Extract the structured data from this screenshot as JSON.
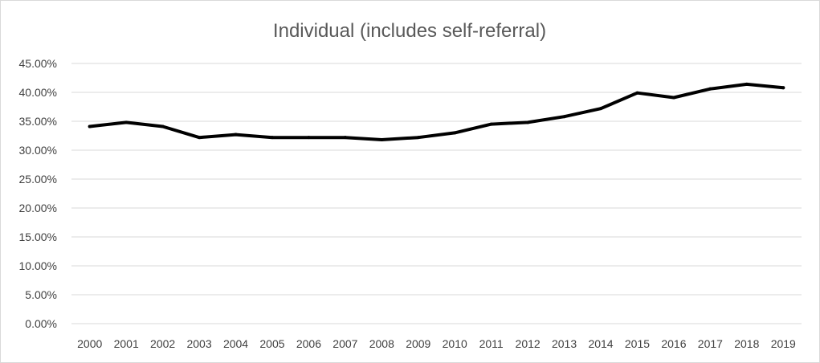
{
  "chart_data": {
    "type": "line",
    "title": "Individual (includes self-referral)",
    "xlabel": "",
    "ylabel": "",
    "categories": [
      "2000",
      "2001",
      "2002",
      "2003",
      "2004",
      "2005",
      "2006",
      "2007",
      "2008",
      "2009",
      "2010",
      "2011",
      "2012",
      "2013",
      "2014",
      "2015",
      "2016",
      "2017",
      "2018",
      "2019"
    ],
    "series": [
      {
        "values": [
          0.341,
          0.348,
          0.341,
          0.322,
          0.327,
          0.322,
          0.322,
          0.322,
          0.318,
          0.322,
          0.33,
          0.345,
          0.348,
          0.358,
          0.372,
          0.399,
          0.391,
          0.406,
          0.414,
          0.408
        ],
        "color": "#000000"
      }
    ],
    "ylim": [
      0,
      0.45
    ],
    "yticks": [
      0,
      0.05,
      0.1,
      0.15,
      0.2,
      0.25,
      0.3,
      0.35,
      0.4,
      0.45
    ],
    "ytick_labels": [
      "0.00%",
      "5.00%",
      "10.00%",
      "15.00%",
      "20.00%",
      "25.00%",
      "30.00%",
      "35.00%",
      "40.00%",
      "45.00%"
    ],
    "grid": true,
    "gridline_color": "#d9d9d9",
    "legend": "none"
  }
}
